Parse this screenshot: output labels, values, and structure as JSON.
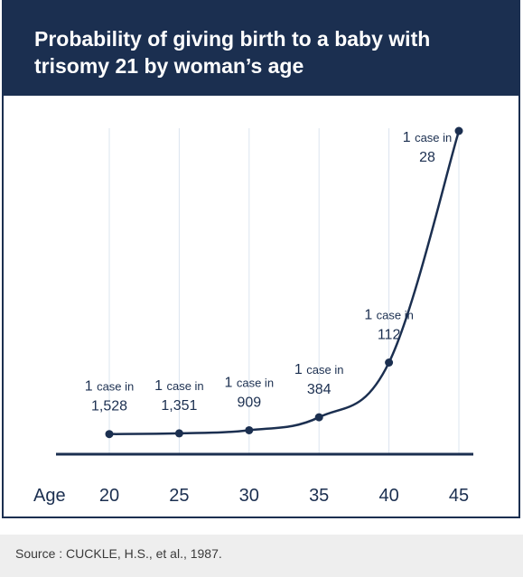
{
  "chart_data": {
    "type": "line",
    "title": "Probability of giving birth to a baby with trisomy 21 by woman’s age",
    "xlabel": "Age",
    "ylabel": "",
    "x": [
      20,
      25,
      30,
      35,
      40,
      45
    ],
    "values": [
      1528,
      1351,
      909,
      384,
      112,
      28
    ],
    "annotations": [
      {
        "prefix": "1",
        "text": "case in",
        "value": "1,528"
      },
      {
        "prefix": "1",
        "text": "case in",
        "value": "1,351"
      },
      {
        "prefix": "1",
        "text": "case in",
        "value": "909"
      },
      {
        "prefix": "1",
        "text": "case in",
        "value": "384"
      },
      {
        "prefix": "1",
        "text": "case in",
        "value": "112"
      },
      {
        "prefix": "1",
        "text": "case in",
        "value": "28"
      }
    ],
    "grid": "vertical",
    "xlim": [
      20,
      45
    ]
  },
  "source": "Source : CUCKLE, H.S., et al., 1987.",
  "colors": {
    "header": "#1b2f50",
    "line": "#1b2f50",
    "grid": "#dbe4ef",
    "text": "#1b2f50",
    "source_bg": "#eeeeee"
  }
}
